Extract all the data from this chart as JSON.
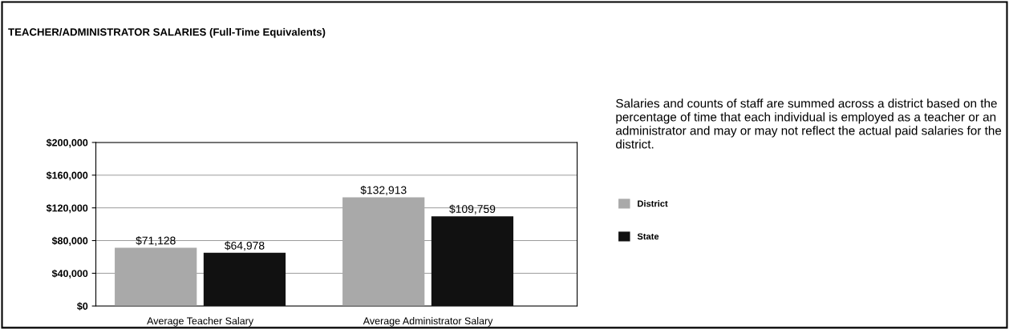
{
  "chart_data": {
    "type": "bar",
    "title": "TEACHER/ADMINISTRATOR SALARIES (Full-Time Equivalents)",
    "categories": [
      "Average Teacher Salary",
      "Average Administrator Salary"
    ],
    "series": [
      {
        "name": "District",
        "color": "#a9a9a9",
        "values": [
          71128,
          132913
        ],
        "value_labels": [
          "$71,128",
          "$132,913"
        ]
      },
      {
        "name": "State",
        "color": "#111111",
        "values": [
          64978,
          109759
        ],
        "value_labels": [
          "$64,978",
          "$109,759"
        ]
      }
    ],
    "ylim": [
      0,
      200000
    ],
    "yticks": [
      {
        "value": 0,
        "label": "$0"
      },
      {
        "value": 40000,
        "label": "$40,000"
      },
      {
        "value": 80000,
        "label": "$80,000"
      },
      {
        "value": 120000,
        "label": "$120,000"
      },
      {
        "value": 160000,
        "label": "$160,000"
      },
      {
        "value": 200000,
        "label": "$200,000"
      }
    ],
    "grid": "y",
    "legend": "right",
    "annotations": [
      "Salaries and counts of staff are summed across a district based on the percentage of time that each individual is employed as a teacher or an administrator and may or may not reflect the actual paid salaries for the district."
    ]
  }
}
